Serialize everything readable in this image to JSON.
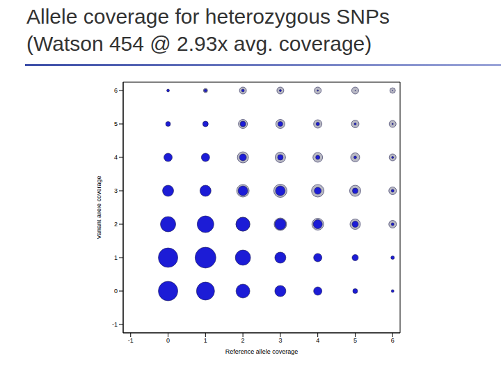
{
  "chart_data": {
    "type": "bubble",
    "title": [
      "Allele coverage for heterozygous SNPs",
      "(Watson 454 @ 2.93x avg. coverage)"
    ],
    "x_label": "Reference allele coverage",
    "y_label": "Variant allele coverage",
    "x": [
      0,
      1,
      2,
      3,
      4,
      5,
      6
    ],
    "y": [
      0,
      1,
      2,
      3,
      4,
      5,
      6
    ],
    "xlim": [
      -1.2,
      6.2
    ],
    "ylim": [
      -1.25,
      6.25
    ],
    "xticks": [
      -1,
      0,
      1,
      2,
      3,
      4,
      5,
      6
    ],
    "yticks": [
      -1,
      0,
      1,
      2,
      3,
      4,
      5,
      6
    ],
    "grid": false,
    "series": [
      {
        "color": "#b8b8c4",
        "sizes": [
          [
            0,
            0,
            0,
            0,
            0,
            0,
            0
          ],
          [
            0,
            0,
            0,
            0,
            0,
            0,
            0
          ],
          [
            0,
            0,
            10,
            9,
            8.5,
            7.5,
            5.5
          ],
          [
            0,
            0,
            9,
            9.5,
            9,
            8,
            5.5
          ],
          [
            0,
            0,
            8,
            7.5,
            7,
            6.5,
            5
          ],
          [
            0,
            0,
            6.5,
            6.5,
            6,
            5.5,
            5
          ],
          [
            1,
            3,
            5,
            5,
            5,
            5,
            4
          ]
        ]
      },
      {
        "color": "#1c1cd6",
        "sizes": [
          [
            14,
            13,
            10,
            8,
            6,
            3.5,
            2
          ],
          [
            14,
            15,
            11,
            8,
            6,
            4.5,
            2.5
          ],
          [
            11,
            12,
            10,
            8,
            6.5,
            4.5,
            2
          ],
          [
            8,
            8,
            7,
            7,
            5,
            4,
            2
          ],
          [
            6,
            6,
            5,
            4,
            3,
            2,
            1.5
          ],
          [
            3.5,
            4,
            4,
            3.5,
            2.5,
            1.5,
            1
          ],
          [
            2,
            2,
            2,
            1.5,
            1,
            0.5,
            0.5
          ]
        ]
      }
    ]
  }
}
